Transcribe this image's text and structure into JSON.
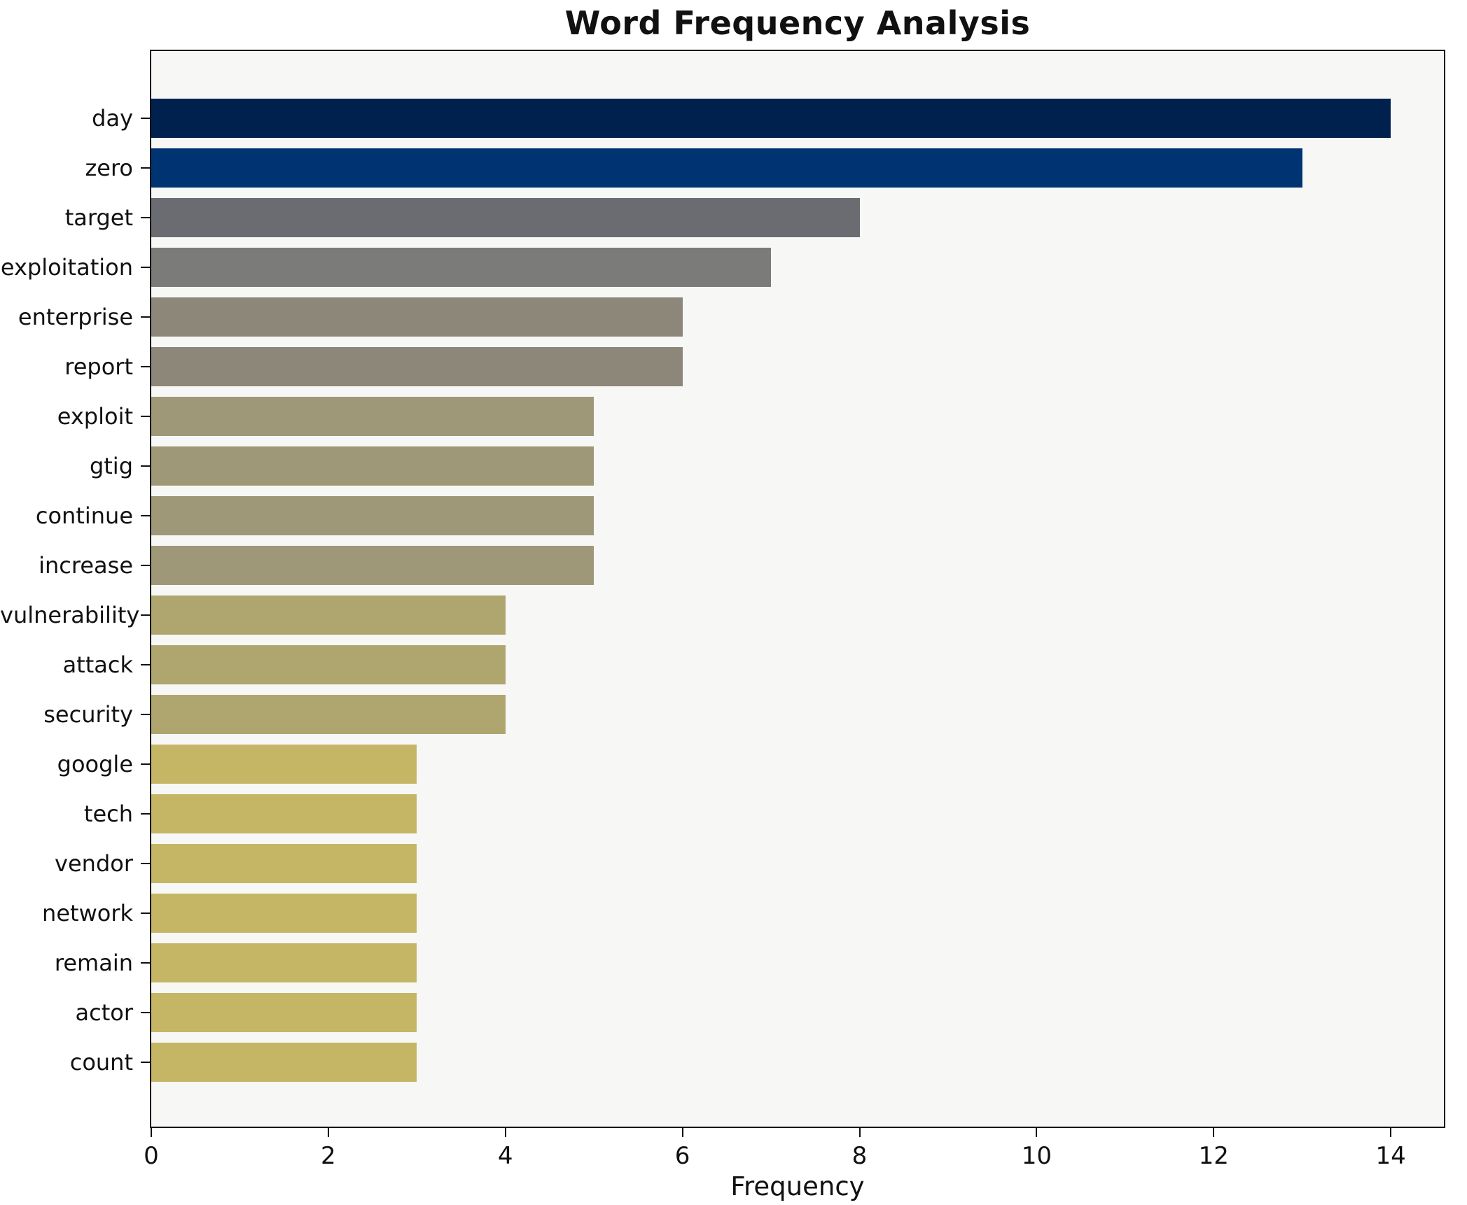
{
  "title": "Word Frequency Analysis",
  "colors": {
    "figure_bg": "#ffffff",
    "plot_bg": "#f7f7f6",
    "spine": "#111111",
    "text": "#111111"
  },
  "chart_data": {
    "type": "bar",
    "orientation": "horizontal",
    "title": "Word Frequency Analysis",
    "xlabel": "Frequency",
    "ylabel": "",
    "grid": false,
    "legend": null,
    "xlim": [
      0,
      14.6
    ],
    "xticks": [
      0,
      2,
      4,
      6,
      8,
      10,
      12,
      14
    ],
    "categories": [
      "day",
      "zero",
      "target",
      "exploitation",
      "enterprise",
      "report",
      "exploit",
      "gtig",
      "continue",
      "increase",
      "vulnerability",
      "attack",
      "security",
      "google",
      "tech",
      "vendor",
      "network",
      "remain",
      "actor",
      "count"
    ],
    "values": [
      14,
      13,
      8,
      7,
      6,
      6,
      5,
      5,
      5,
      5,
      4,
      4,
      4,
      3,
      3,
      3,
      3,
      3,
      3,
      3
    ],
    "bar_colors": [
      "#00214d",
      "#003371",
      "#6b6c71",
      "#7b7b79",
      "#8d8779",
      "#8d8779",
      "#9f9878",
      "#9f9878",
      "#9f9878",
      "#9f9878",
      "#afa66f",
      "#afa66f",
      "#afa66f",
      "#c5b666",
      "#c5b666",
      "#c5b666",
      "#c5b666",
      "#c5b666",
      "#c5b666",
      "#c5b666"
    ]
  }
}
